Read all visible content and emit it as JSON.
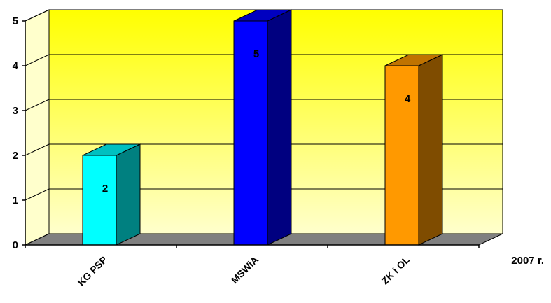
{
  "chart_data": {
    "type": "bar",
    "categories": [
      "KG PSP",
      "MSWiA",
      "ZK i OL"
    ],
    "values": [
      2,
      5,
      4
    ],
    "data_labels": [
      "2",
      "5",
      "4"
    ],
    "ylim": [
      0,
      5
    ],
    "yticks": [
      "0",
      "1",
      "2",
      "3",
      "4",
      "5"
    ],
    "xlabel": "2007 r.",
    "grid": true,
    "colors": {
      "bars": [
        "#00ffff",
        "#0000ff",
        "#ff9900"
      ],
      "sides": [
        "#008080",
        "#000080",
        "#7f4c00"
      ],
      "tops": [
        "#00c0c0",
        "#0000c0",
        "#c07300"
      ],
      "back_wall_top": "#ffff00",
      "back_wall_bottom": "#ffffcc",
      "side_wall": "#ffffcc",
      "floor": "#808080"
    }
  }
}
